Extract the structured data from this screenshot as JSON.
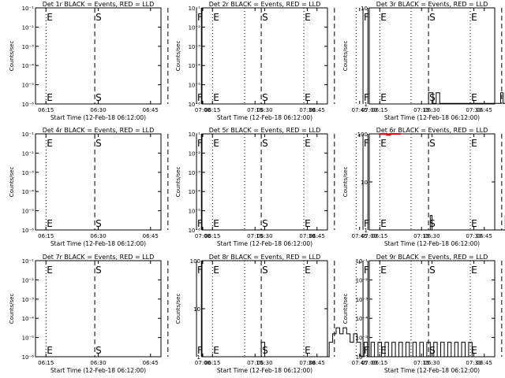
{
  "xaxis": {
    "label": "Start Time (12-Feb-18 06:12:00)",
    "ticks": [
      "06:15",
      "06:30",
      "06:45",
      "07:00",
      "07:15",
      "07:30",
      "07:45"
    ],
    "range_min": [
      12,
      48
    ],
    "tick_min": [
      15,
      30,
      45,
      60,
      75,
      90,
      105
    ]
  },
  "ylabel": "Counts/sec",
  "colors": {
    "events": "#000000",
    "lld": "#ff0000"
  },
  "markers": {
    "E1": {
      "min": 15,
      "style": "dotted",
      "label": "E"
    },
    "S": {
      "min": 29,
      "style": "dashed",
      "label": "S"
    },
    "D2": {
      "min": 50,
      "style": "dashed"
    },
    "F1": {
      "min": 58.2,
      "style": "solid",
      "label": "F"
    },
    "F2": {
      "min": 59.6,
      "style": "solid"
    },
    "D3": {
      "min": 72,
      "style": "dotted"
    },
    "E2": {
      "min": 89,
      "style": "dotted",
      "label": "E"
    },
    "D4": {
      "min": 104,
      "style": "dotted"
    }
  },
  "chart_data": [
    {
      "type": "line",
      "title": "Det 1r BLACK = Events, RED = LLD",
      "yscale": "log",
      "ylim": [
        1e-06,
        0.1
      ],
      "yticks": [
        "10⁻¹",
        "10⁻²",
        "10⁻³",
        "10⁻⁴",
        "10⁻⁵",
        "10⁻⁶"
      ],
      "series": []
    },
    {
      "type": "line",
      "title": "Det 2r BLACK = Events, RED = LLD",
      "yscale": "log",
      "ylim": [
        1e-06,
        0.1
      ],
      "yticks": [
        "10⁻¹",
        "10⁻²",
        "10⁻³",
        "10⁻⁴",
        "10⁻⁵",
        "10⁻⁶"
      ],
      "series": []
    },
    {
      "type": "line",
      "title": "Det 3r BLACK = Events, RED = LLD",
      "yscale": "linear",
      "ylim": [
        0.95,
        10
      ],
      "yticks": [
        "10",
        "1"
      ],
      "series": [
        {
          "color": "events",
          "x": [
            29,
            29,
            30.3,
            30.3,
            31.2,
            31.2,
            32.2,
            32.2,
            49.7,
            49.7,
            50.4,
            50.4,
            51,
            51,
            52.2,
            52.2,
            52.8,
            52.8,
            53.7,
            53.7,
            55,
            55,
            55.6,
            55.6,
            57.4,
            57.4,
            58.4,
            58.4,
            60,
            60,
            61,
            61,
            61.7,
            61.7,
            62.3,
            62.3,
            65,
            65,
            66,
            66,
            69,
            69,
            70,
            70,
            89,
            89,
            89.7,
            89.7
          ],
          "y": [
            1,
            2,
            2,
            1,
            1,
            2,
            2,
            1,
            1,
            2,
            2,
            1,
            1,
            2,
            2,
            1,
            1,
            2,
            2,
            1,
            1,
            2,
            2,
            1,
            1,
            2,
            2,
            1,
            1,
            2,
            2,
            1,
            1,
            2,
            2,
            1,
            1,
            2,
            2,
            1,
            1,
            2,
            2,
            1,
            1,
            2,
            2,
            1
          ]
        }
      ]
    },
    {
      "type": "line",
      "title": "Det 4r BLACK = Events, RED = LLD",
      "yscale": "log",
      "ylim": [
        1e-06,
        0.1
      ],
      "yticks": [
        "10⁻¹",
        "10⁻²",
        "10⁻³",
        "10⁻⁴",
        "10⁻⁵",
        "10⁻⁶"
      ],
      "series": []
    },
    {
      "type": "line",
      "title": "Det 5r BLACK = Events, RED = LLD",
      "yscale": "log",
      "ylim": [
        1e-06,
        0.1
      ],
      "yticks": [
        "10⁻¹",
        "10⁻²",
        "10⁻³",
        "10⁻⁴",
        "10⁻⁵",
        "10⁻⁶"
      ],
      "series": []
    },
    {
      "type": "line",
      "title": "Det 6r BLACK = Events, RED = LLD",
      "yscale": "log",
      "ylim": [
        1,
        100
      ],
      "yticks": [
        "100",
        "10",
        "1"
      ],
      "series": [
        {
          "color": "events",
          "x": [
            29.5,
            29.5,
            30,
            30,
            51,
            51,
            51.7,
            51.7,
            52.8,
            52.8,
            53.6,
            53.6,
            54.4,
            54.4,
            55.2,
            55.2,
            56.2,
            56.2,
            57,
            57,
            57.6,
            57.6,
            60.2,
            60.2,
            61
          ],
          "y": [
            1,
            2,
            2,
            1,
            1,
            2,
            2,
            1,
            1,
            2,
            2,
            3,
            3,
            2,
            2,
            3,
            3,
            2,
            2,
            1,
            1,
            2,
            2,
            1,
            1
          ]
        },
        {
          "color": "lld",
          "x": [
            15,
            17,
            17,
            18,
            18,
            21
          ],
          "y": [
            100,
            100,
            95,
            95,
            100,
            100
          ]
        },
        {
          "color": "lld",
          "x": [
            64,
            68,
            68,
            69,
            69,
            72,
            72,
            73,
            73,
            76
          ],
          "y": [
            100,
            100,
            95,
            95,
            100,
            100,
            95,
            95,
            100,
            100
          ]
        }
      ]
    },
    {
      "type": "line",
      "title": "Det 7r BLACK = Events, RED = LLD",
      "yscale": "log",
      "ylim": [
        1e-06,
        0.1
      ],
      "yticks": [
        "10⁻¹",
        "10⁻²",
        "10⁻³",
        "10⁻⁴",
        "10⁻⁵",
        "10⁻⁶"
      ],
      "series": []
    },
    {
      "type": "line",
      "title": "Det 8r BLACK = Events, RED = LLD",
      "yscale": "log",
      "ylim": [
        1,
        100
      ],
      "yticks": [
        "100",
        "10",
        "1"
      ],
      "series": [
        {
          "color": "events",
          "x": [
            29,
            29,
            30,
            30,
            31,
            31,
            48.5,
            48.5,
            49.5,
            49.5,
            50.5,
            50.5,
            51.5,
            51.5,
            52.5,
            52.5,
            53.5,
            53.5,
            54.5,
            54.5,
            55.5,
            55.5,
            56.5,
            56.5,
            57.5,
            57.5,
            58.5,
            58.5,
            59.5,
            59.5,
            60.5,
            60.5,
            61.5,
            61.5,
            62.5,
            62.5,
            63.5,
            63.5,
            64.5,
            64.5,
            65.5,
            65.5,
            66.5,
            66.5,
            67.5,
            67.5,
            68.5,
            68.5,
            69.5,
            69.5,
            70.5,
            70.5,
            71.5,
            71.5,
            72.5,
            72.5,
            73.5,
            73.5,
            74.5,
            74.5,
            75.5,
            75.5,
            76.5,
            76.5,
            77.5,
            77.5,
            78.5,
            78.5,
            79.5,
            79.5,
            80.5,
            80.5,
            81.5,
            81.5,
            82.5,
            82.5,
            83.5,
            83.5,
            84.5,
            84.5,
            85.5,
            85.5,
            86.5,
            86.5,
            87.5,
            87.5,
            88.5,
            88.5,
            89.5,
            89.5
          ],
          "y": [
            1,
            2,
            2,
            1,
            1,
            1,
            1,
            2,
            2,
            3,
            3,
            4,
            4,
            3,
            3,
            4,
            4,
            3,
            3,
            2,
            2,
            3,
            3,
            2,
            2,
            1,
            1,
            2,
            2,
            1,
            1,
            2,
            2,
            1,
            1,
            2,
            2,
            1,
            1,
            2,
            2,
            1,
            1,
            2,
            2,
            1,
            1,
            2,
            2,
            1,
            1,
            2,
            2,
            1,
            1,
            2,
            2,
            1,
            1,
            2,
            2,
            1,
            1,
            2,
            2,
            1,
            1,
            2,
            2,
            1,
            1,
            2,
            2,
            1,
            1,
            2,
            2,
            1,
            1,
            2,
            2,
            1,
            1,
            2,
            2,
            1,
            1,
            2,
            2,
            1
          ]
        }
      ]
    },
    {
      "type": "line",
      "title": "Det 9r BLACK = Events, RED = LLD",
      "yscale": "log",
      "ylim": [
        1e-06,
        0.1
      ],
      "yticks": [
        "10⁻¹",
        "10⁻²",
        "10⁻³",
        "10⁻⁴",
        "10⁻⁵",
        "10⁻⁶"
      ],
      "series": []
    }
  ]
}
